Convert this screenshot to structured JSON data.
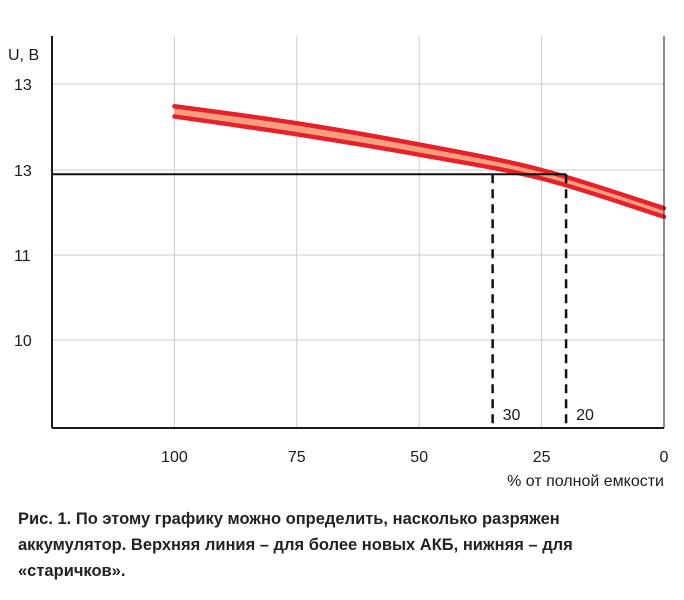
{
  "chart_data": {
    "type": "line",
    "ylabel": "U, B",
    "xlabel": "% от полной емкости",
    "x_ticks": [
      100,
      75,
      50,
      25,
      0
    ],
    "x_tick_labels": [
      "100",
      "75",
      "50",
      "25",
      "0"
    ],
    "xlim": [
      125,
      0
    ],
    "y_tick_labels": [
      "13",
      "13",
      "11",
      "10"
    ],
    "series": [
      {
        "x": [
          100,
          75,
          50,
          25,
          0
        ],
        "values": [
          12.75,
          12.55,
          12.3,
          12.0,
          11.55
        ]
      },
      {
        "x": [
          100,
          75,
          50,
          25,
          0
        ],
        "values": [
          12.63,
          12.42,
          12.18,
          11.9,
          11.45
        ]
      }
    ],
    "fill_between_series": true,
    "reference_level": 11.95,
    "reference_markers": [
      {
        "x": 35,
        "label": "30"
      },
      {
        "x": 20,
        "label": "20"
      }
    ],
    "grid": true,
    "colors": {
      "line": "#e8202a",
      "band": "#f4a080",
      "grid": "#cccccc",
      "axis": "#1a1a1a"
    }
  },
  "caption": "Рис. 1. По этому графику можно определить, насколько разряжен аккумулятор. Верхняя линия – для более новых АКБ, нижняя – для «старичков»."
}
